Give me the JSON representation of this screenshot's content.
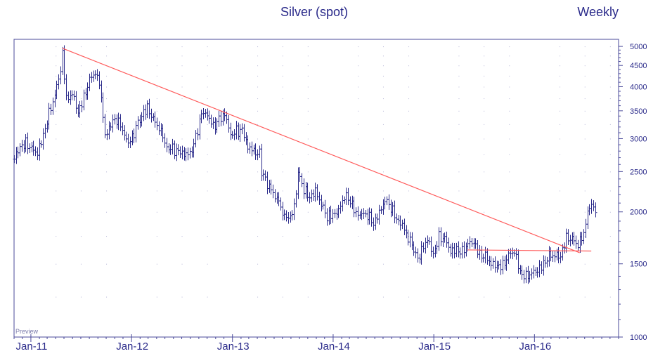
{
  "chart_data": {
    "type": "ohlc-bar",
    "title": "Silver (spot)",
    "period_label": "Weekly",
    "watermark": "Preview",
    "y_scale": "log",
    "ylim": [
      1000,
      5200
    ],
    "y_ticks": [
      {
        "value": 1000,
        "label": "1000"
      },
      {
        "value": 1500,
        "label": "1500"
      },
      {
        "value": 2000,
        "label": "2000"
      },
      {
        "value": 2500,
        "label": "2500"
      },
      {
        "value": 3000,
        "label": "3000"
      },
      {
        "value": 3500,
        "label": "3500"
      },
      {
        "value": 4000,
        "label": "4000"
      },
      {
        "value": 4500,
        "label": "4500"
      },
      {
        "value": 5000,
        "label": "5000"
      }
    ],
    "x_range": [
      "2010-11-01",
      "2016-11-01"
    ],
    "x_ticks": [
      {
        "value": "2011-01-01",
        "label": "Jan-11"
      },
      {
        "value": "2012-01-01",
        "label": "Jan-12"
      },
      {
        "value": "2013-01-01",
        "label": "Jan-13"
      },
      {
        "value": "2014-01-01",
        "label": "Jan-14"
      },
      {
        "value": "2015-01-01",
        "label": "Jan-15"
      },
      {
        "value": "2016-01-01",
        "label": "Jan-16"
      }
    ],
    "grid": true,
    "price_path": [
      [
        "2010-11-01",
        2650
      ],
      [
        "2010-11-22",
        2900
      ],
      [
        "2010-12-13",
        2950
      ],
      [
        "2011-01-03",
        2800
      ],
      [
        "2011-01-24",
        2750
      ],
      [
        "2011-02-14",
        3100
      ],
      [
        "2011-03-07",
        3450
      ],
      [
        "2011-03-28",
        3750
      ],
      [
        "2011-04-18",
        4400
      ],
      [
        "2011-04-25",
        4900
      ],
      [
        "2011-05-09",
        3700
      ],
      [
        "2011-05-30",
        3800
      ],
      [
        "2011-06-20",
        3500
      ],
      [
        "2011-07-11",
        3800
      ],
      [
        "2011-08-01",
        4100
      ],
      [
        "2011-08-22",
        4300
      ],
      [
        "2011-09-05",
        4150
      ],
      [
        "2011-09-26",
        3050
      ],
      [
        "2011-10-17",
        3200
      ],
      [
        "2011-11-07",
        3350
      ],
      [
        "2011-11-28",
        3200
      ],
      [
        "2011-12-19",
        2900
      ],
      [
        "2012-01-09",
        3050
      ],
      [
        "2012-02-06",
        3450
      ],
      [
        "2012-02-27",
        3600
      ],
      [
        "2012-03-19",
        3300
      ],
      [
        "2012-04-09",
        3150
      ],
      [
        "2012-05-07",
        2900
      ],
      [
        "2012-05-28",
        2850
      ],
      [
        "2012-06-18",
        2750
      ],
      [
        "2012-07-09",
        2750
      ],
      [
        "2012-07-30",
        2800
      ],
      [
        "2012-08-20",
        3000
      ],
      [
        "2012-09-10",
        3400
      ],
      [
        "2012-10-01",
        3450
      ],
      [
        "2012-10-22",
        3250
      ],
      [
        "2012-11-12",
        3300
      ],
      [
        "2012-12-03",
        3400
      ],
      [
        "2012-12-24",
        3100
      ],
      [
        "2013-01-14",
        3150
      ],
      [
        "2013-02-04",
        3100
      ],
      [
        "2013-02-25",
        2850
      ],
      [
        "2013-03-18",
        2850
      ],
      [
        "2013-04-08",
        2750
      ],
      [
        "2013-04-15",
        2450
      ],
      [
        "2013-05-06",
        2350
      ],
      [
        "2013-05-27",
        2250
      ],
      [
        "2013-06-17",
        2100
      ],
      [
        "2013-07-01",
        1950
      ],
      [
        "2013-07-22",
        1950
      ],
      [
        "2013-08-12",
        2050
      ],
      [
        "2013-08-26",
        2450
      ],
      [
        "2013-09-16",
        2250
      ],
      [
        "2013-10-07",
        2200
      ],
      [
        "2013-10-28",
        2250
      ],
      [
        "2013-11-18",
        2050
      ],
      [
        "2013-12-09",
        1950
      ],
      [
        "2013-12-30",
        2000
      ],
      [
        "2014-01-20",
        2000
      ],
      [
        "2014-02-10",
        2150
      ],
      [
        "2014-03-03",
        2150
      ],
      [
        "2014-03-24",
        2000
      ],
      [
        "2014-04-14",
        1950
      ],
      [
        "2014-05-05",
        1950
      ],
      [
        "2014-05-26",
        1900
      ],
      [
        "2014-06-16",
        2000
      ],
      [
        "2014-07-07",
        2100
      ],
      [
        "2014-07-28",
        2050
      ],
      [
        "2014-08-18",
        1950
      ],
      [
        "2014-09-08",
        1850
      ],
      [
        "2014-09-29",
        1700
      ],
      [
        "2014-10-20",
        1650
      ],
      [
        "2014-11-03",
        1550
      ],
      [
        "2014-11-17",
        1600
      ],
      [
        "2014-12-08",
        1700
      ],
      [
        "2014-12-29",
        1600
      ],
      [
        "2015-01-19",
        1750
      ],
      [
        "2015-02-09",
        1700
      ],
      [
        "2015-03-02",
        1600
      ],
      [
        "2015-03-23",
        1650
      ],
      [
        "2015-04-13",
        1600
      ],
      [
        "2015-05-04",
        1650
      ],
      [
        "2015-05-25",
        1700
      ],
      [
        "2015-06-15",
        1600
      ],
      [
        "2015-07-06",
        1550
      ],
      [
        "2015-07-27",
        1480
      ],
      [
        "2015-08-17",
        1500
      ],
      [
        "2015-09-07",
        1500
      ],
      [
        "2015-09-28",
        1550
      ],
      [
        "2015-10-19",
        1600
      ],
      [
        "2015-11-09",
        1450
      ],
      [
        "2015-11-30",
        1400
      ],
      [
        "2015-12-21",
        1400
      ],
      [
        "2016-01-11",
        1450
      ],
      [
        "2016-02-01",
        1520
      ],
      [
        "2016-02-22",
        1560
      ],
      [
        "2016-03-14",
        1550
      ],
      [
        "2016-04-04",
        1580
      ],
      [
        "2016-04-25",
        1750
      ],
      [
        "2016-05-16",
        1700
      ],
      [
        "2016-06-06",
        1650
      ],
      [
        "2016-06-27",
        1800
      ],
      [
        "2016-07-11",
        2000
      ],
      [
        "2016-07-25",
        2050
      ],
      [
        "2016-08-08",
        2020
      ]
    ],
    "trendlines": [
      {
        "name": "downtrend",
        "color": "#ff5a5a",
        "points": [
          [
            "2011-04-25",
            4950
          ],
          [
            "2016-06-13",
            1595
          ]
        ]
      },
      {
        "name": "neckline",
        "color": "#ff5a5a",
        "points": [
          [
            "2015-05-04",
            1620
          ],
          [
            "2016-07-25",
            1610
          ]
        ]
      }
    ]
  },
  "colors": {
    "bars": "#2a2a8a",
    "trendline": "#ff5a5a",
    "text": "#2a2a8a",
    "frame": "#4a4a9a",
    "grid": "#b8b8d8"
  }
}
